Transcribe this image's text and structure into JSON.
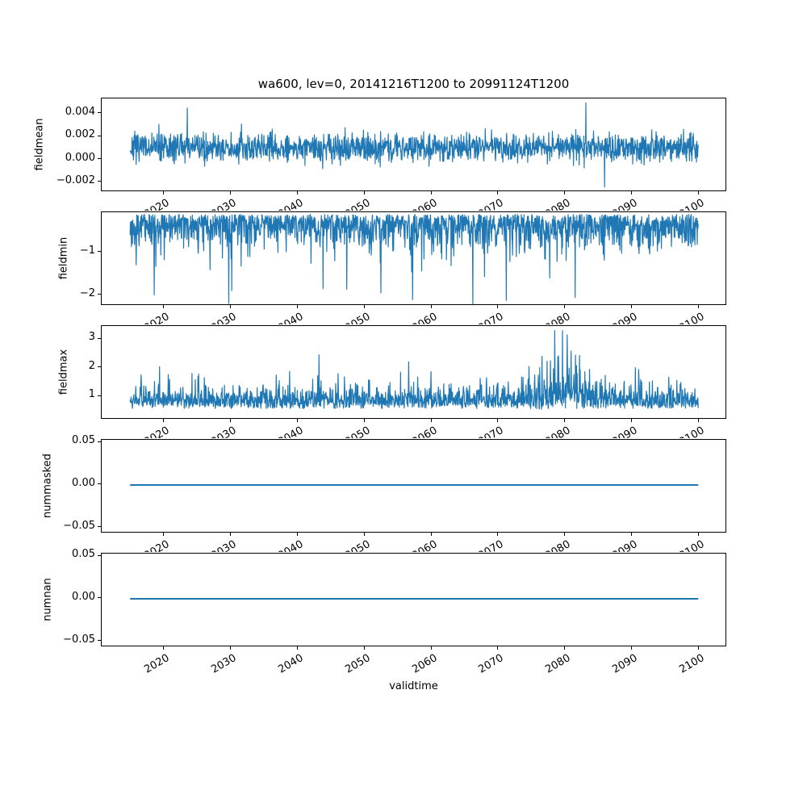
{
  "figure": {
    "title": "wa600, lev=0, 20141216T1200 to 20991124T1200",
    "xlabel": "validtime",
    "background": "#ffffff",
    "text_color": "#000000",
    "line_color": "#1f77b4"
  },
  "x_axis": {
    "label": "validtime",
    "ticks": [
      2020,
      2030,
      2040,
      2050,
      2060,
      2070,
      2080,
      2090,
      2100
    ],
    "tick_labels": [
      "2020",
      "2030",
      "2040",
      "2050",
      "2060",
      "2070",
      "2080",
      "2090",
      "2100"
    ],
    "xlim": [
      2010.71,
      2104.22
    ],
    "data_x_range": [
      2014.96,
      2099.9
    ],
    "tick_label_rotation_deg": 30
  },
  "chart_data": [
    {
      "type": "line",
      "series_name": "fieldmean",
      "ylabel": "fieldmean",
      "yticks": [
        0.004,
        0.002,
        0.0,
        -0.002
      ],
      "ytick_labels": [
        "0.004",
        "0.002",
        "0.000",
        "−0.002"
      ],
      "ylim": [
        -0.00286,
        0.00534
      ],
      "grid": false,
      "summary": {
        "description": "dense noisy series",
        "mean": 0.001,
        "dense_band": [
          0.0,
          0.002
        ],
        "typical_envelope": [
          -0.001,
          0.003
        ],
        "min": -0.0024,
        "max": 0.005,
        "max_near_x": 2083
      }
    },
    {
      "type": "line",
      "series_name": "fieldmin",
      "ylabel": "fieldmin",
      "yticks": [
        -1,
        -2
      ],
      "ytick_labels": [
        "−1",
        "−2"
      ],
      "ylim": [
        -2.244,
        -0.0675
      ],
      "grid": false,
      "summary": {
        "description": "dense noisy series of negative minima",
        "dense_band": [
          -0.9,
          -0.12
        ],
        "frequent_spikes_to": -1.6,
        "min": -2.2
      }
    },
    {
      "type": "line",
      "series_name": "fieldmax",
      "ylabel": "fieldmax",
      "yticks": [
        3,
        2,
        1
      ],
      "ytick_labels": [
        "3",
        "2",
        "1"
      ],
      "ylim": [
        0.18,
        3.461
      ],
      "grid": false,
      "summary": {
        "description": "dense noisy series of maxima with burst near 2080",
        "dense_band": [
          0.55,
          1.6
        ],
        "occasional_spikes_to": 2.5,
        "burst_period": [
          2073,
          2083
        ],
        "burst_max": 3.3,
        "burst_peak_near_x": 2080
      }
    },
    {
      "type": "line",
      "series_name": "nummasked",
      "ylabel": "nummasked",
      "yticks": [
        0.05,
        0.0,
        -0.05
      ],
      "ytick_labels": [
        "0.05",
        "0.00",
        "−0.05"
      ],
      "ylim": [
        -0.057,
        0.0531
      ],
      "grid": false,
      "summary": {
        "description": "constant line",
        "constant_value": 0
      }
    },
    {
      "type": "line",
      "series_name": "numnan",
      "ylabel": "numnan",
      "yticks": [
        0.05,
        0.0,
        -0.05
      ],
      "ytick_labels": [
        "0.05",
        "0.00",
        "−0.05"
      ],
      "ylim": [
        -0.057,
        0.0531
      ],
      "grid": false,
      "summary": {
        "description": "constant line",
        "constant_value": 0
      }
    }
  ]
}
